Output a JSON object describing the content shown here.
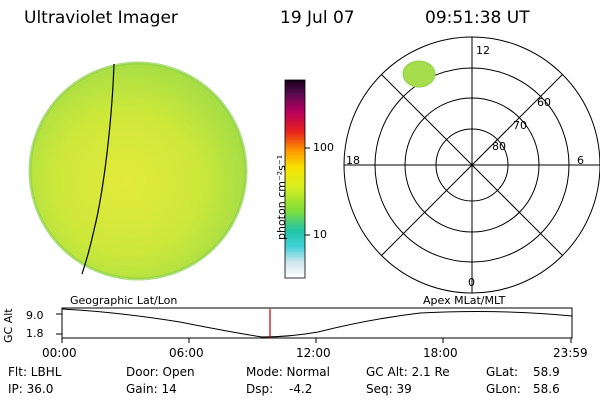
{
  "header": {
    "title": "Ultraviolet Imager",
    "date": "19 Jul 07",
    "time": "09:51:38 UT"
  },
  "colorbar": {
    "unit_label": "photon cm⁻²s⁻¹",
    "ticks": [
      "100",
      "10"
    ]
  },
  "polar_plot": {
    "mlt_labels": [
      "12",
      "18",
      "6",
      "0"
    ],
    "lat_labels": [
      "60",
      "70",
      "80"
    ]
  },
  "timeline": {
    "y_axis_title": "GC Alt",
    "y_ticks": [
      "9.0",
      "1.8"
    ],
    "left_label": "Geographic Lat/Lon",
    "right_label": "Apex MLat/MLT",
    "x_ticks": [
      "00:00",
      "06:00",
      "12:00",
      "18:00",
      "23:59"
    ],
    "cursor_color": "#cc0000"
  },
  "status": {
    "filter": "Flt: LBHL",
    "ip": "IP: 36.0",
    "door": "Door: Open",
    "gain": "Gain: 14",
    "mode": "Mode: Normal",
    "dsp_label": "Dsp:",
    "dsp_value": "-4.2",
    "gc_alt": "GC Alt: 2.1 Re",
    "seq": "Seq: 39",
    "glat_label": "GLat:",
    "glat_value": "58.9",
    "glon_label": "GLon:",
    "glon_value": "58.6"
  },
  "colors": {
    "disk_fill": "#c8ea3a",
    "disk_edge": "#8fd14a",
    "spot": "#a5dd4c"
  }
}
